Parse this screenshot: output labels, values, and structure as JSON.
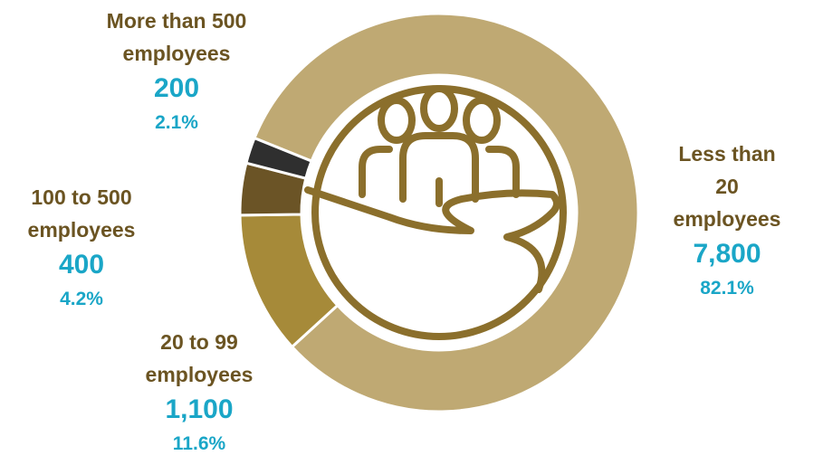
{
  "chart_data": {
    "type": "donut",
    "categories": [
      "Less than 20\nemployees",
      "20 to 99\nemployees",
      "100 to 500\nemployees",
      "More than 500\nemployees"
    ],
    "values": [
      7800,
      1100,
      400,
      200
    ],
    "value_labels": [
      "7,800",
      "1,100",
      "400",
      "200"
    ],
    "percentages": [
      82.1,
      11.6,
      4.2,
      2.1
    ],
    "percentage_labels": [
      "82.1%",
      "11.6%",
      "4.2%",
      "2.1%"
    ],
    "colors": [
      "#bfa973",
      "#a68a39",
      "#6b5426",
      "#2f2f2f"
    ]
  }
}
